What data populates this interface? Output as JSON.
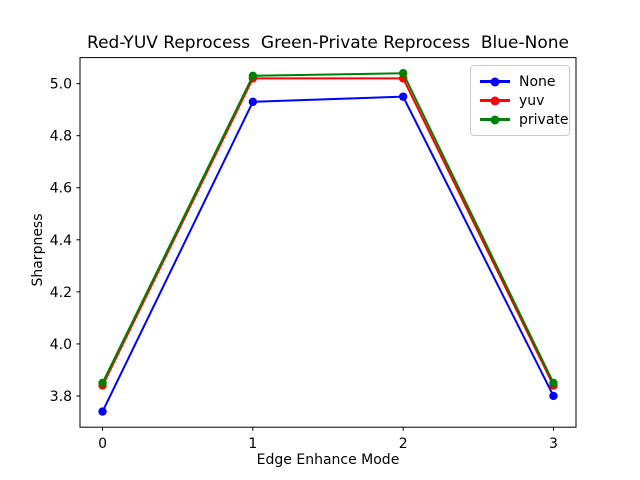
{
  "figure": {
    "background": "#ffffff",
    "text_color": "#000000"
  },
  "chart_data": {
    "type": "line",
    "title": "Red-YUV Reprocess  Green-Private Reprocess  Blue-None",
    "xlabel": "Edge Enhance Mode",
    "ylabel": "Sharpness",
    "x": [
      0,
      1,
      2,
      3
    ],
    "series": [
      {
        "name": "None",
        "color": "#0000ff",
        "values": [
          3.74,
          4.93,
          4.95,
          3.8
        ]
      },
      {
        "name": "yuv",
        "color": "#ff0000",
        "values": [
          3.84,
          5.02,
          5.02,
          3.84
        ]
      },
      {
        "name": "private",
        "color": "#008000",
        "values": [
          3.85,
          5.03,
          5.04,
          3.85
        ]
      }
    ],
    "xticks": [
      "0",
      "1",
      "2",
      "3"
    ],
    "yticks": [
      "3.8",
      "4.0",
      "4.2",
      "4.4",
      "4.6",
      "4.8",
      "5.0"
    ],
    "xlim": [
      -0.15,
      3.15
    ],
    "ylim": [
      3.68,
      5.1
    ],
    "grid": false,
    "legend_position": "upper right",
    "marker": "circle",
    "legend_entries": [
      "None",
      "yuv",
      "private"
    ]
  }
}
